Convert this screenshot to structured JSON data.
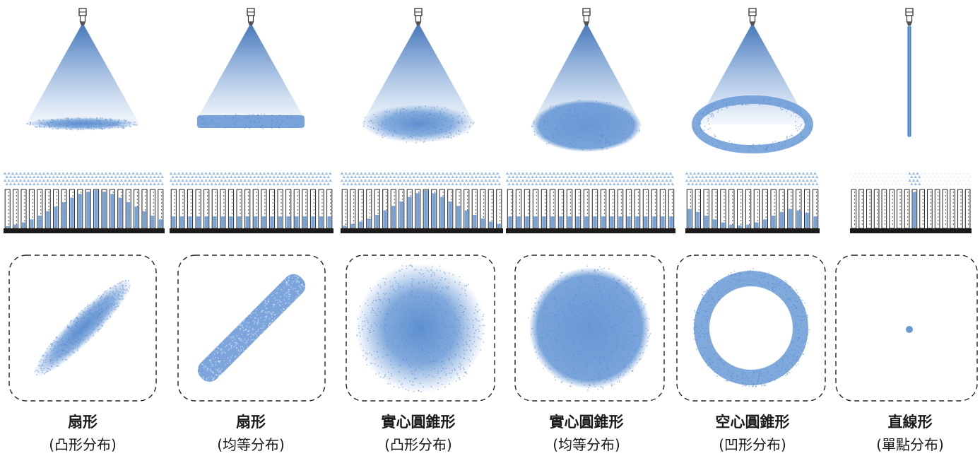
{
  "colors": {
    "spray": "#6a9ad6",
    "cone_top": "#3f73b8",
    "nozzle_stroke": "#333333",
    "base_bar": "#1a1a1a",
    "dashed_frame": "#222222",
    "caption_text": "#1a1a1a"
  },
  "spray_types": [
    {
      "id": "flat-convex",
      "name": "扇形",
      "distribution": "(凸形分布)",
      "icons": [
        "nozzle-icon",
        "spray-cone-icon",
        "tube-array-icon",
        "ellipse-pattern-icon"
      ],
      "pattern": "ellipse-diagonal",
      "profile": "convex",
      "tube_fill": [
        0.04,
        0.08,
        0.14,
        0.22,
        0.32,
        0.44,
        0.56,
        0.68,
        0.8,
        0.9,
        0.96,
        1.0,
        0.96,
        0.9,
        0.8,
        0.68,
        0.56,
        0.44,
        0.32,
        0.22
      ]
    },
    {
      "id": "flat-even",
      "name": "扇形",
      "distribution": "(均等分布)",
      "icons": [
        "nozzle-icon",
        "spray-cone-icon",
        "tube-array-icon",
        "bar-pattern-icon"
      ],
      "pattern": "bar-diagonal",
      "profile": "even",
      "tube_fill": [
        0.3,
        0.3,
        0.3,
        0.3,
        0.3,
        0.3,
        0.3,
        0.3,
        0.3,
        0.3,
        0.3,
        0.3,
        0.3,
        0.3,
        0.3,
        0.3,
        0.3,
        0.3,
        0.3,
        0.3
      ]
    },
    {
      "id": "full-cone-convex",
      "name": "實心圓錐形",
      "distribution": "(凸形分布)",
      "icons": [
        "nozzle-icon",
        "spray-cone-icon",
        "tube-array-icon",
        "disc-pattern-icon"
      ],
      "pattern": "disc-soft",
      "profile": "convex",
      "tube_fill": [
        0.05,
        0.1,
        0.16,
        0.24,
        0.34,
        0.46,
        0.58,
        0.7,
        0.82,
        0.92,
        1.0,
        0.92,
        0.82,
        0.7,
        0.58,
        0.46,
        0.34,
        0.24,
        0.16,
        0.1
      ]
    },
    {
      "id": "full-cone-even",
      "name": "實心圓錐形",
      "distribution": "(均等分布)",
      "icons": [
        "nozzle-icon",
        "spray-cone-icon",
        "tube-array-icon",
        "disc-pattern-icon"
      ],
      "pattern": "disc-even",
      "profile": "even",
      "tube_fill": [
        0.3,
        0.3,
        0.3,
        0.3,
        0.3,
        0.3,
        0.3,
        0.3,
        0.3,
        0.3,
        0.3,
        0.3,
        0.3,
        0.3,
        0.3,
        0.3,
        0.3,
        0.3,
        0.3,
        0.3
      ]
    },
    {
      "id": "hollow-cone-concave",
      "name": "空心圓錐形",
      "distribution": "(凹形分布)",
      "icons": [
        "nozzle-icon",
        "spray-cone-icon",
        "tube-array-icon",
        "ring-pattern-icon"
      ],
      "pattern": "ring",
      "profile": "concave",
      "tube_fill": [
        0.5,
        0.42,
        0.32,
        0.22,
        0.14,
        0.08,
        0.06,
        0.08,
        0.14,
        0.22,
        0.32,
        0.42,
        0.5,
        0.46,
        0.4,
        0.3
      ]
    },
    {
      "id": "solid-stream",
      "name": "直線形",
      "distribution": "(單點分布)",
      "icons": [
        "nozzle-icon",
        "stream-jet-icon",
        "tube-array-icon",
        "dot-pattern-icon"
      ],
      "pattern": "dot",
      "profile": "single",
      "tube_fill": [
        0,
        0,
        0,
        0,
        0,
        0,
        0,
        0,
        0.95,
        0,
        0,
        0,
        0,
        0,
        0,
        0
      ]
    }
  ]
}
